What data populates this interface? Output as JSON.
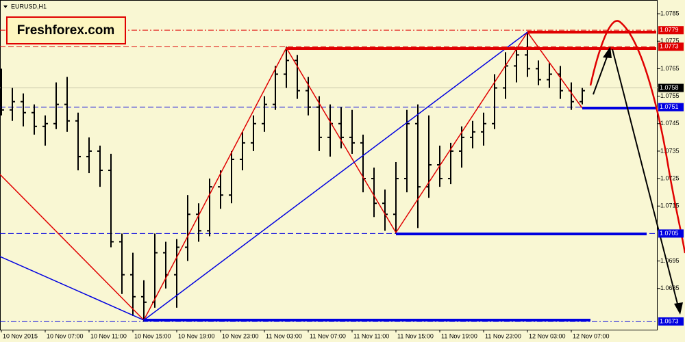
{
  "chart_data": {
    "type": "ohlc",
    "title": "EURUSD,H1",
    "watermark": "Freshforex.com",
    "categories": [
      "10 Nov 2015",
      null,
      null,
      null,
      "10 Nov 07:00",
      null,
      null,
      null,
      "10 Nov 11:00",
      null,
      null,
      null,
      "10 Nov 15:00",
      null,
      null,
      null,
      "10 Nov 19:00",
      null,
      null,
      null,
      "10 Nov 23:00",
      null,
      null,
      null,
      "11 Nov 03:00",
      null,
      null,
      null,
      "11 Nov 07:00",
      null,
      null,
      null,
      "11 Nov 11:00",
      null,
      null,
      null,
      "11 Nov 15:00",
      null,
      null,
      null,
      "11 Nov 19:00",
      null,
      null,
      null,
      "11 Nov 23:00",
      null,
      null,
      null,
      "12 Nov 03:00",
      null,
      null,
      null,
      "12 Nov 07:00",
      null
    ],
    "open": [
      1.0755,
      1.075,
      1.0753,
      1.0749,
      1.0744,
      1.0745,
      1.0752,
      1.0746,
      1.0733,
      1.0735,
      1.0728,
      1.0702,
      1.069,
      1.0682,
      1.068,
      1.0698,
      1.069,
      1.07,
      1.0712,
      1.0706,
      1.0722,
      1.0719,
      1.0732,
      1.0738,
      1.0745,
      1.0752,
      1.0763,
      1.0768,
      1.0757,
      1.0751,
      1.074,
      1.0745,
      1.074,
      1.0738,
      1.0725,
      1.0716,
      1.0712,
      1.0725,
      1.0745,
      1.0722,
      1.073,
      1.0725,
      1.0735,
      1.074,
      1.0742,
      1.0745,
      1.0758,
      1.0766,
      1.077,
      1.0765,
      1.0761,
      1.0763,
      1.0757,
      1.0753
    ],
    "high": [
      1.0765,
      1.0758,
      1.0756,
      1.0752,
      1.0748,
      1.076,
      1.0762,
      1.0749,
      1.074,
      1.0737,
      1.0734,
      1.0705,
      1.0698,
      1.0688,
      1.0705,
      1.0702,
      1.0703,
      1.0719,
      1.0716,
      1.0725,
      1.0728,
      1.0735,
      1.0742,
      1.0748,
      1.0755,
      1.0766,
      1.0773,
      1.077,
      1.0762,
      1.0755,
      1.0752,
      1.0751,
      1.075,
      1.0741,
      1.0729,
      1.0721,
      1.0731,
      1.075,
      1.0752,
      1.0748,
      1.0737,
      1.0738,
      1.0744,
      1.0746,
      1.0749,
      1.0763,
      1.0771,
      1.0773,
      1.0778,
      1.0768,
      1.0767,
      1.0766,
      1.076,
      1.0758
    ],
    "low": [
      1.0748,
      1.0746,
      1.0744,
      1.0741,
      1.0737,
      1.0743,
      1.0742,
      1.0728,
      1.0727,
      1.0722,
      1.07,
      1.0683,
      1.0675,
      1.0673,
      1.0678,
      1.0685,
      1.0678,
      1.0695,
      1.0702,
      1.0704,
      1.0714,
      1.0716,
      1.0728,
      1.0735,
      1.0742,
      1.075,
      1.0758,
      1.0754,
      1.0748,
      1.0735,
      1.0733,
      1.0736,
      1.0734,
      1.072,
      1.0711,
      1.0706,
      1.0705,
      1.072,
      1.0707,
      1.0718,
      1.0722,
      1.0723,
      1.0729,
      1.0736,
      1.0737,
      1.0743,
      1.0754,
      1.076,
      1.0762,
      1.0759,
      1.0758,
      1.0754,
      1.075,
      1.0752
    ],
    "close": [
      1.075,
      1.0753,
      1.0749,
      1.0744,
      1.0745,
      1.0752,
      1.0746,
      1.0733,
      1.0735,
      1.0728,
      1.0702,
      1.069,
      1.0682,
      1.068,
      1.0698,
      1.069,
      1.07,
      1.0712,
      1.0706,
      1.0722,
      1.0719,
      1.0732,
      1.0738,
      1.0745,
      1.0752,
      1.0763,
      1.0768,
      1.0757,
      1.0751,
      1.074,
      1.0745,
      1.074,
      1.0738,
      1.0725,
      1.0716,
      1.0712,
      1.0725,
      1.0745,
      1.0722,
      1.073,
      1.0725,
      1.0735,
      1.074,
      1.0742,
      1.0745,
      1.0758,
      1.0766,
      1.077,
      1.0765,
      1.0761,
      1.0763,
      1.0757,
      1.0753,
      1.0757
    ],
    "color": "#000000",
    "ylim": [
      1.067,
      1.079
    ],
    "yticks": [
      1.0685,
      1.0695,
      1.0715,
      1.0725,
      1.0735,
      1.0745,
      1.0755,
      1.0765,
      1.0775,
      1.0785
    ],
    "levels": [
      {
        "value": 1.0779,
        "color": "#e00000"
      },
      {
        "value": 1.0773,
        "color": "#e00000"
      },
      {
        "value": 1.0758,
        "color": "#000000"
      },
      {
        "value": 1.0751,
        "color": "#0000e0"
      },
      {
        "value": 1.0705,
        "color": "#0000e0"
      },
      {
        "value": 1.0673,
        "color": "#0000e0"
      }
    ]
  }
}
